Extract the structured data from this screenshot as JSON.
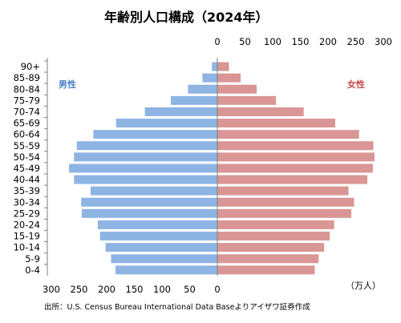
{
  "chart_data": {
    "type": "bar",
    "orientation": "horizontal",
    "title": "年齢別人口構成（2024年）",
    "unit": "（万人）",
    "source": "出所：U.S. Census Bureau International Data Baseよりアイザワ証券作成",
    "categories": [
      "90+",
      "85-89",
      "80-84",
      "75-79",
      "70-74",
      "65-69",
      "60-64",
      "55-59",
      "50-54",
      "45-49",
      "40-44",
      "35-39",
      "30-34",
      "25-29",
      "20-24",
      "15-19",
      "10-14",
      "5-9",
      "0-4"
    ],
    "series": [
      {
        "name": "男性",
        "color": "#8eb4e3",
        "values": [
          10,
          27,
          53,
          84,
          131,
          183,
          224,
          254,
          259,
          268,
          259,
          229,
          246,
          245,
          216,
          212,
          202,
          192,
          184
        ]
      },
      {
        "name": "女性",
        "color": "#d99694",
        "values": [
          21,
          42,
          71,
          106,
          156,
          213,
          256,
          282,
          284,
          281,
          271,
          237,
          247,
          242,
          211,
          203,
          193,
          183,
          176
        ]
      }
    ],
    "xticks_left": [
      300,
      250,
      200,
      150,
      100,
      50,
      0
    ],
    "xticks_right": [
      0,
      50,
      100,
      150,
      200,
      250,
      300
    ],
    "xlim": [
      0,
      300
    ],
    "grid": false,
    "legend": [
      "top-left",
      "top-right"
    ]
  }
}
